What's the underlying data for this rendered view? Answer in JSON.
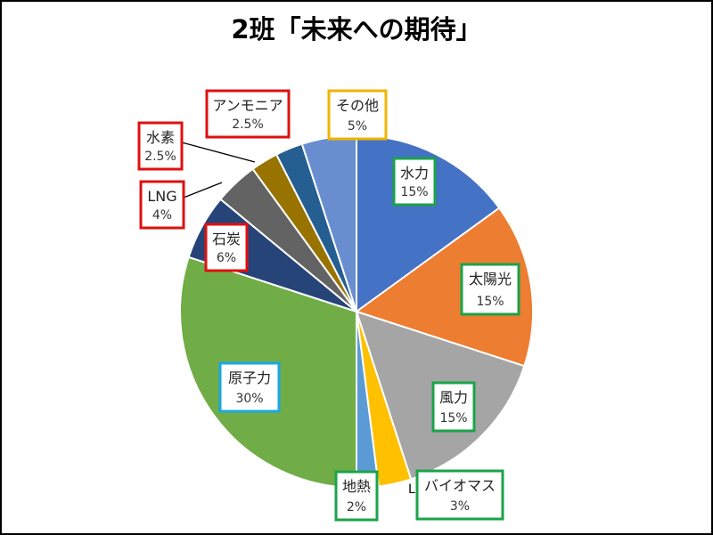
{
  "chart_data": {
    "type": "pie",
    "title": "2班「未来への期待」",
    "start_angle": 0,
    "direction": "clockwise",
    "slices": [
      {
        "label": "水力",
        "value": 15,
        "value_label": "15%",
        "color": "#4472C4",
        "label_border": "#1BA34A"
      },
      {
        "label": "太陽光",
        "value": 15,
        "value_label": "15%",
        "color": "#ED7D31",
        "label_border": "#1BA34A"
      },
      {
        "label": "風力",
        "value": 15,
        "value_label": "15%",
        "color": "#A5A5A5",
        "label_border": "#1BA34A"
      },
      {
        "label": "バイオマス",
        "value": 3,
        "value_label": "3%",
        "color": "#FFC000",
        "label_border": "#1BA34A"
      },
      {
        "label": "地熱",
        "value": 2,
        "value_label": "2%",
        "color": "#5B9BD5",
        "label_border": "#1BA34A"
      },
      {
        "label": "原子力",
        "value": 30,
        "value_label": "30%",
        "color": "#70AD47",
        "label_border": "#1AA7E5"
      },
      {
        "label": "石炭",
        "value": 6,
        "value_label": "6%",
        "color": "#264478",
        "label_border": "#E01010"
      },
      {
        "label": "LNG",
        "value": 4,
        "value_label": "4%",
        "color": "#636363",
        "label_border": "#E01010"
      },
      {
        "label": "水素",
        "value": 2.5,
        "value_label": "2.5%",
        "color": "#997300",
        "label_border": "#E01010"
      },
      {
        "label": "アンモニア",
        "value": 2.5,
        "value_label": "2.5%",
        "color": "#255E91",
        "label_border": "#E01010"
      },
      {
        "label": "その他",
        "value": 5,
        "value_label": "5%",
        "color": "#698ED0",
        "label_border": "#F0B400"
      }
    ],
    "stray_mark": "L"
  }
}
